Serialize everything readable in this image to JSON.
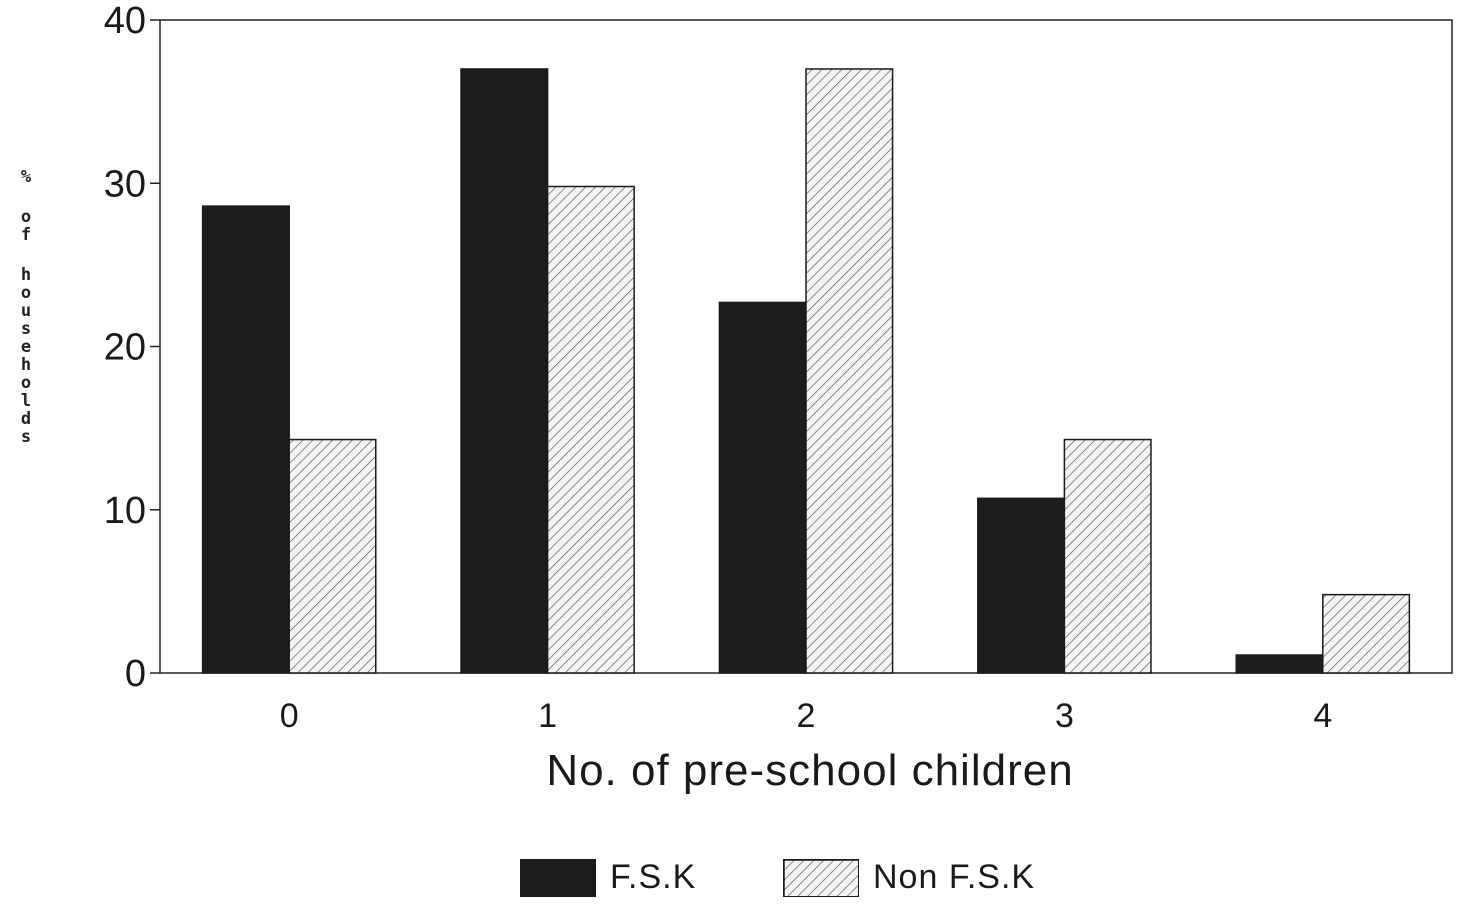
{
  "chart_data": {
    "type": "bar",
    "title": "",
    "xlabel": "No. of pre-school children",
    "ylabel": "% of households",
    "categories": [
      "0",
      "1",
      "2",
      "3",
      "4"
    ],
    "series": [
      {
        "name": "F.S.K",
        "values": [
          28.6,
          37.0,
          22.7,
          10.7,
          1.1
        ],
        "color": "#1c1c1c",
        "fill": "solid"
      },
      {
        "name": "Non F.S.K",
        "values": [
          14.3,
          29.8,
          37.0,
          14.3,
          4.8
        ],
        "color": "#dcdcdc",
        "fill": "hatched"
      }
    ],
    "ylim": [
      0,
      40
    ],
    "yticks": [
      "0",
      "10",
      "20",
      "30",
      "40"
    ],
    "grid": false,
    "legend_position": "bottom"
  },
  "legend": [
    {
      "label": "F.S.K"
    },
    {
      "label": "Non F.S.K"
    }
  ]
}
